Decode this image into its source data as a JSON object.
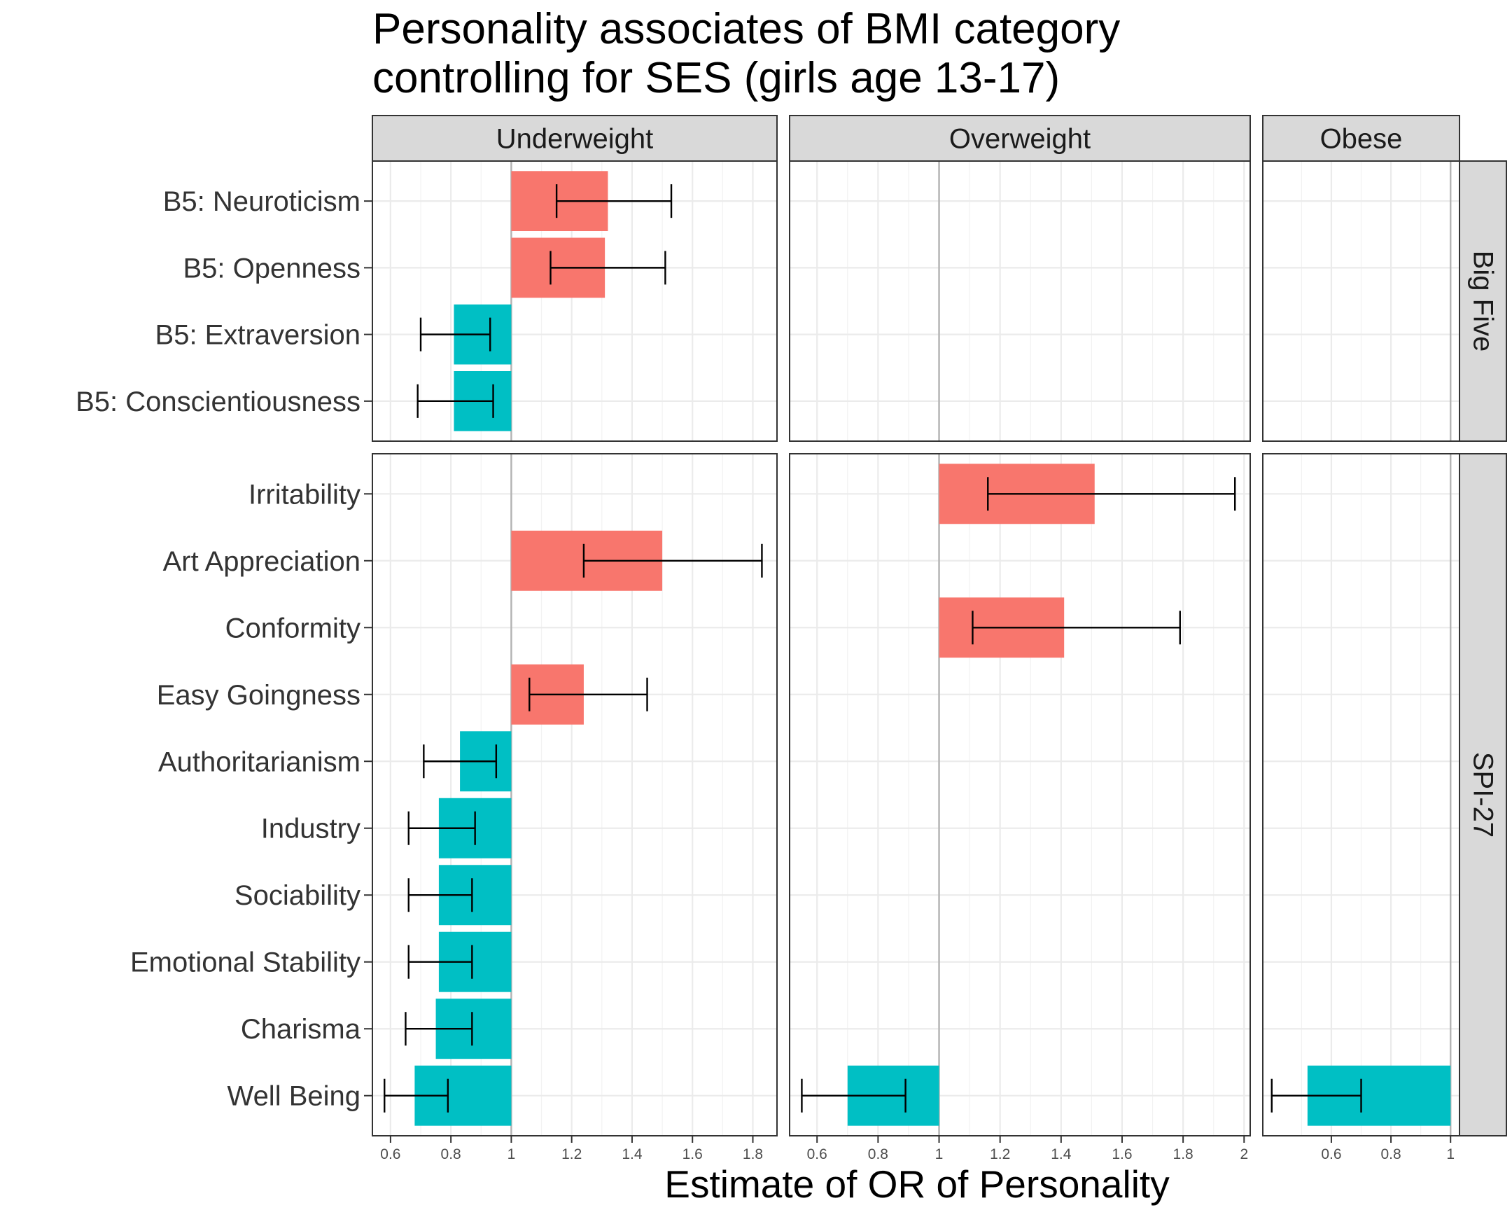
{
  "chart_data": {
    "type": "bar",
    "title": "Personality associates of BMI category\ncontrolling for SES (girls age 13-17)",
    "xlabel": "Estimate of OR of Personality",
    "ylabel": "",
    "baseline": 1,
    "fill_above": "#F8766D",
    "fill_below": "#00BFC4",
    "col_facets": [
      {
        "name": "Underweight",
        "xlim": [
          0.54,
          1.88
        ],
        "ticks": [
          0.6,
          0.8,
          1,
          1.2,
          1.4,
          1.6,
          1.8
        ],
        "tick_labels": [
          "0.6",
          "0.8",
          "1",
          "1.2",
          "1.4",
          "1.6",
          "1.8"
        ]
      },
      {
        "name": "Overweight",
        "xlim": [
          0.51,
          2.02
        ],
        "ticks": [
          0.6,
          0.8,
          1,
          1.2,
          1.4,
          1.6,
          1.8,
          2
        ],
        "tick_labels": [
          "0.6",
          "0.8",
          "1",
          "1.2",
          "1.4",
          "1.6",
          "1.8",
          "2"
        ]
      },
      {
        "name": "Obese",
        "xlim": [
          0.37,
          1.03
        ],
        "ticks": [
          0.6,
          0.8,
          1
        ],
        "tick_labels": [
          "0.6",
          "0.8",
          "1"
        ]
      }
    ],
    "row_facets": [
      {
        "name": "Big Five",
        "traits": [
          "B5: Neuroticism",
          "B5: Openness",
          "B5: Extraversion",
          "B5: Conscientiousness"
        ]
      },
      {
        "name": "SPI-27",
        "traits": [
          "Irritability",
          "Art Appreciation",
          "Conformity",
          "Easy Goingness",
          "Authoritarianism",
          "Industry",
          "Sociability",
          "Emotional Stability",
          "Charisma",
          "Well Being"
        ]
      }
    ],
    "points": [
      {
        "col": "Underweight",
        "row": "Big Five",
        "trait": "B5: Neuroticism",
        "estimate": 1.32,
        "lower": 1.15,
        "upper": 1.53
      },
      {
        "col": "Underweight",
        "row": "Big Five",
        "trait": "B5: Openness",
        "estimate": 1.31,
        "lower": 1.13,
        "upper": 1.51
      },
      {
        "col": "Underweight",
        "row": "Big Five",
        "trait": "B5: Extraversion",
        "estimate": 0.81,
        "lower": 0.7,
        "upper": 0.93
      },
      {
        "col": "Underweight",
        "row": "Big Five",
        "trait": "B5: Conscientiousness",
        "estimate": 0.81,
        "lower": 0.69,
        "upper": 0.94
      },
      {
        "col": "Underweight",
        "row": "SPI-27",
        "trait": "Art Appreciation",
        "estimate": 1.5,
        "lower": 1.24,
        "upper": 1.83
      },
      {
        "col": "Underweight",
        "row": "SPI-27",
        "trait": "Easy Goingness",
        "estimate": 1.24,
        "lower": 1.06,
        "upper": 1.45
      },
      {
        "col": "Underweight",
        "row": "SPI-27",
        "trait": "Authoritarianism",
        "estimate": 0.83,
        "lower": 0.71,
        "upper": 0.95
      },
      {
        "col": "Underweight",
        "row": "SPI-27",
        "trait": "Industry",
        "estimate": 0.76,
        "lower": 0.66,
        "upper": 0.88
      },
      {
        "col": "Underweight",
        "row": "SPI-27",
        "trait": "Sociability",
        "estimate": 0.76,
        "lower": 0.66,
        "upper": 0.87
      },
      {
        "col": "Underweight",
        "row": "SPI-27",
        "trait": "Emotional Stability",
        "estimate": 0.76,
        "lower": 0.66,
        "upper": 0.87
      },
      {
        "col": "Underweight",
        "row": "SPI-27",
        "trait": "Charisma",
        "estimate": 0.75,
        "lower": 0.65,
        "upper": 0.87
      },
      {
        "col": "Underweight",
        "row": "SPI-27",
        "trait": "Well Being",
        "estimate": 0.68,
        "lower": 0.58,
        "upper": 0.79
      },
      {
        "col": "Overweight",
        "row": "SPI-27",
        "trait": "Irritability",
        "estimate": 1.51,
        "lower": 1.16,
        "upper": 1.97
      },
      {
        "col": "Overweight",
        "row": "SPI-27",
        "trait": "Conformity",
        "estimate": 1.41,
        "lower": 1.11,
        "upper": 1.79
      },
      {
        "col": "Overweight",
        "row": "SPI-27",
        "trait": "Well Being",
        "estimate": 0.7,
        "lower": 0.55,
        "upper": 0.89
      },
      {
        "col": "Obese",
        "row": "SPI-27",
        "trait": "Well Being",
        "estimate": 0.52,
        "lower": 0.4,
        "upper": 0.7
      }
    ]
  }
}
